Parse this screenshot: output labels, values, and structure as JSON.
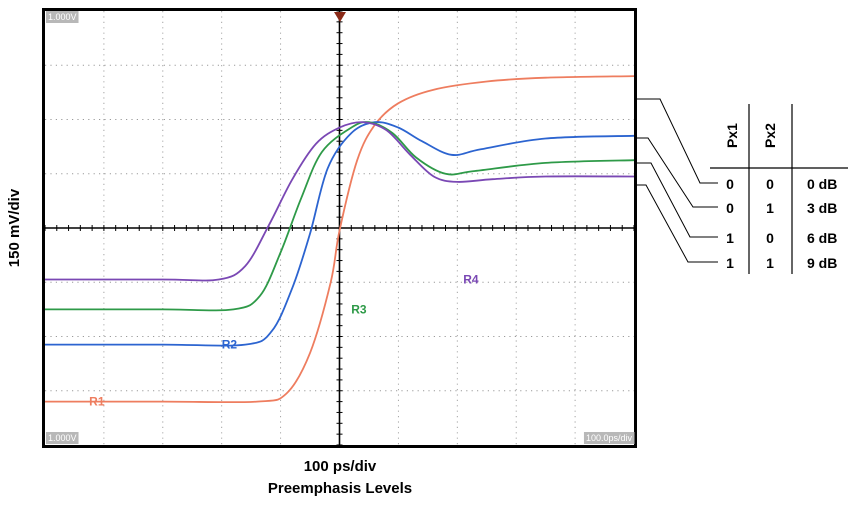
{
  "chart_data": {
    "type": "line",
    "xlabel": "100 ps/div",
    "subtitle": "Preemphasis Levels",
    "ylabel": "150 mV/div",
    "corner_labels": {
      "top_left": "1.000V",
      "bottom_left": "1.000V",
      "bottom_right": "100.0ps/div"
    },
    "x_divisions": 10,
    "y_divisions": 8,
    "grid": true,
    "series": [
      {
        "name": "R1",
        "color": "#ee7d5f",
        "x": [
          0,
          2,
          3.6,
          4.1,
          4.5,
          4.85,
          5.0,
          5.3,
          5.6,
          6.0,
          6.6,
          7.5,
          8.5,
          10
        ],
        "y": [
          -3.2,
          -3.2,
          -3.2,
          -3.05,
          -2.3,
          -1.0,
          -0.05,
          1.25,
          1.9,
          2.3,
          2.55,
          2.7,
          2.77,
          2.8
        ]
      },
      {
        "name": "R2",
        "color": "#2c64d0",
        "x": [
          0,
          2,
          3.4,
          3.85,
          4.2,
          4.5,
          4.8,
          5.2,
          5.6,
          6.0,
          6.4,
          6.9,
          7.4,
          8.5,
          10
        ],
        "y": [
          -2.15,
          -2.15,
          -2.15,
          -1.9,
          -1.1,
          -0.1,
          1.1,
          1.75,
          1.95,
          1.85,
          1.6,
          1.35,
          1.45,
          1.65,
          1.7
        ]
      },
      {
        "name": "R3",
        "color": "#2e9a48",
        "x": [
          0,
          2,
          3.2,
          3.65,
          4.0,
          4.35,
          4.7,
          5.2,
          5.5,
          5.9,
          6.3,
          6.8,
          7.3,
          8.5,
          10
        ],
        "y": [
          -1.5,
          -1.5,
          -1.5,
          -1.25,
          -0.45,
          0.55,
          1.4,
          1.85,
          1.95,
          1.75,
          1.3,
          1.0,
          1.05,
          1.2,
          1.25
        ]
      },
      {
        "name": "R4",
        "color": "#7a48b4",
        "x": [
          0,
          2,
          2.95,
          3.4,
          3.8,
          4.2,
          4.6,
          5.0,
          5.4,
          5.8,
          6.2,
          6.6,
          7.0,
          7.6,
          8.5,
          10
        ],
        "y": [
          -0.95,
          -0.95,
          -0.95,
          -0.7,
          0.05,
          0.9,
          1.55,
          1.85,
          1.95,
          1.8,
          1.35,
          0.95,
          0.85,
          0.9,
          0.95,
          0.95
        ]
      }
    ],
    "table": {
      "headers": [
        "Px1",
        "Px2",
        ""
      ],
      "rows": [
        [
          "0",
          "0",
          "0 dB"
        ],
        [
          "0",
          "1",
          "3 dB"
        ],
        [
          "1",
          "0",
          "6 dB"
        ],
        [
          "1",
          "1",
          "9 dB"
        ]
      ]
    }
  }
}
